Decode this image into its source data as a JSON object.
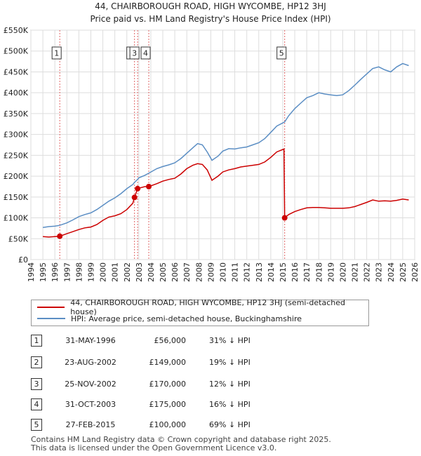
{
  "title_line1": "44, CHAIRBOROUGH ROAD, HIGH WYCOMBE, HP12 3HJ",
  "title_line2": "Price paid vs. HM Land Registry's House Price Index (HPI)",
  "colors": {
    "price_line": "#cc0000",
    "hpi_line": "#5b8ec4",
    "grid": "#dddddd",
    "sale_marker": "#cc0000",
    "vline": "#e06666"
  },
  "chart_data": {
    "type": "line",
    "title": "44, CHAIRBOROUGH ROAD, HIGH WYCOMBE, HP12 3HJ — Price paid vs. HM Land Registry's House Price Index (HPI)",
    "xlim": [
      1994,
      2026
    ],
    "ylim": [
      0,
      550000
    ],
    "x_ticks": [
      "1994",
      "1995",
      "1996",
      "1997",
      "1998",
      "1999",
      "2000",
      "2001",
      "2002",
      "2003",
      "2004",
      "2005",
      "2006",
      "2007",
      "2008",
      "2009",
      "2010",
      "2011",
      "2012",
      "2013",
      "2014",
      "2015",
      "2016",
      "2017",
      "2018",
      "2019",
      "2020",
      "2021",
      "2022",
      "2023",
      "2024",
      "2025",
      "2026"
    ],
    "y_ticks": [
      {
        "value": 0,
        "label": "£0"
      },
      {
        "value": 50000,
        "label": "£50K"
      },
      {
        "value": 100000,
        "label": "£100K"
      },
      {
        "value": 150000,
        "label": "£150K"
      },
      {
        "value": 200000,
        "label": "£200K"
      },
      {
        "value": 250000,
        "label": "£250K"
      },
      {
        "value": 300000,
        "label": "£300K"
      },
      {
        "value": 350000,
        "label": "£350K"
      },
      {
        "value": 400000,
        "label": "£400K"
      },
      {
        "value": 450000,
        "label": "£450K"
      },
      {
        "value": 500000,
        "label": "£500K"
      },
      {
        "value": 550000,
        "label": "£550K"
      }
    ],
    "series": [
      {
        "name": "44, CHAIRBOROUGH ROAD, HIGH WYCOMBE, HP12 3HJ (semi-detached house)",
        "points": [
          [
            1995.0,
            55000
          ],
          [
            1995.5,
            54000
          ],
          [
            1996.0,
            55000
          ],
          [
            1996.41,
            56000
          ],
          [
            1997.0,
            62000
          ],
          [
            1997.5,
            67000
          ],
          [
            1998.0,
            72000
          ],
          [
            1998.5,
            76000
          ],
          [
            1999.0,
            78000
          ],
          [
            1999.5,
            84000
          ],
          [
            2000.0,
            94000
          ],
          [
            2000.5,
            102000
          ],
          [
            2001.0,
            105000
          ],
          [
            2001.5,
            110000
          ],
          [
            2002.0,
            120000
          ],
          [
            2002.5,
            135000
          ],
          [
            2002.64,
            149000
          ],
          [
            2002.9,
            170000
          ],
          [
            2003.0,
            171000
          ],
          [
            2003.5,
            175000
          ],
          [
            2003.83,
            175000
          ],
          [
            2004.5,
            182000
          ],
          [
            2005.0,
            188000
          ],
          [
            2005.5,
            192000
          ],
          [
            2006.0,
            195000
          ],
          [
            2006.5,
            205000
          ],
          [
            2007.0,
            218000
          ],
          [
            2007.5,
            226000
          ],
          [
            2007.9,
            230000
          ],
          [
            2008.3,
            228000
          ],
          [
            2008.7,
            215000
          ],
          [
            2009.1,
            190000
          ],
          [
            2009.6,
            200000
          ],
          [
            2010.0,
            210000
          ],
          [
            2010.5,
            215000
          ],
          [
            2011.0,
            218000
          ],
          [
            2011.5,
            222000
          ],
          [
            2012.0,
            224000
          ],
          [
            2012.5,
            226000
          ],
          [
            2013.0,
            228000
          ],
          [
            2013.5,
            234000
          ],
          [
            2014.0,
            245000
          ],
          [
            2014.5,
            258000
          ],
          [
            2015.1,
            265000
          ],
          [
            2015.16,
            100000
          ],
          [
            2015.5,
            108000
          ],
          [
            2016.0,
            115000
          ],
          [
            2016.5,
            120000
          ],
          [
            2017.0,
            124000
          ],
          [
            2017.5,
            125000
          ],
          [
            2018.0,
            125000
          ],
          [
            2018.5,
            124000
          ],
          [
            2019.0,
            123000
          ],
          [
            2019.5,
            123000
          ],
          [
            2020.0,
            123000
          ],
          [
            2020.5,
            124000
          ],
          [
            2021.0,
            127000
          ],
          [
            2021.5,
            132000
          ],
          [
            2022.0,
            137000
          ],
          [
            2022.5,
            143000
          ],
          [
            2023.0,
            140000
          ],
          [
            2023.5,
            141000
          ],
          [
            2024.0,
            140000
          ],
          [
            2024.5,
            142000
          ],
          [
            2025.0,
            145000
          ],
          [
            2025.5,
            143000
          ]
        ]
      },
      {
        "name": "HPI: Average price, semi-detached house, Buckinghamshire",
        "points": [
          [
            1995.0,
            77000
          ],
          [
            1995.5,
            79000
          ],
          [
            1996.0,
            80000
          ],
          [
            1996.41,
            82000
          ],
          [
            1997.0,
            88000
          ],
          [
            1997.5,
            95000
          ],
          [
            1998.0,
            103000
          ],
          [
            1998.5,
            108000
          ],
          [
            1999.0,
            112000
          ],
          [
            1999.5,
            120000
          ],
          [
            2000.0,
            130000
          ],
          [
            2000.5,
            140000
          ],
          [
            2001.0,
            148000
          ],
          [
            2001.5,
            158000
          ],
          [
            2002.0,
            170000
          ],
          [
            2002.5,
            180000
          ],
          [
            2002.64,
            185000
          ],
          [
            2002.9,
            192000
          ],
          [
            2003.0,
            196000
          ],
          [
            2003.5,
            202000
          ],
          [
            2003.83,
            207000
          ],
          [
            2004.5,
            218000
          ],
          [
            2005.0,
            223000
          ],
          [
            2005.5,
            227000
          ],
          [
            2006.0,
            232000
          ],
          [
            2006.5,
            242000
          ],
          [
            2007.0,
            255000
          ],
          [
            2007.5,
            268000
          ],
          [
            2007.9,
            278000
          ],
          [
            2008.3,
            275000
          ],
          [
            2008.7,
            258000
          ],
          [
            2009.1,
            238000
          ],
          [
            2009.6,
            248000
          ],
          [
            2010.0,
            260000
          ],
          [
            2010.5,
            266000
          ],
          [
            2011.0,
            265000
          ],
          [
            2011.5,
            268000
          ],
          [
            2012.0,
            270000
          ],
          [
            2012.5,
            275000
          ],
          [
            2013.0,
            280000
          ],
          [
            2013.5,
            290000
          ],
          [
            2014.0,
            305000
          ],
          [
            2014.5,
            320000
          ],
          [
            2015.16,
            330000
          ],
          [
            2015.5,
            345000
          ],
          [
            2016.0,
            362000
          ],
          [
            2016.5,
            375000
          ],
          [
            2017.0,
            388000
          ],
          [
            2017.5,
            393000
          ],
          [
            2018.0,
            400000
          ],
          [
            2018.5,
            397000
          ],
          [
            2019.0,
            395000
          ],
          [
            2019.5,
            393000
          ],
          [
            2020.0,
            395000
          ],
          [
            2020.5,
            405000
          ],
          [
            2021.0,
            418000
          ],
          [
            2021.5,
            432000
          ],
          [
            2022.0,
            445000
          ],
          [
            2022.5,
            458000
          ],
          [
            2023.0,
            462000
          ],
          [
            2023.5,
            455000
          ],
          [
            2024.0,
            450000
          ],
          [
            2024.5,
            462000
          ],
          [
            2025.0,
            470000
          ],
          [
            2025.5,
            465000
          ]
        ]
      }
    ],
    "sales": [
      {
        "label": "1",
        "x": 1996.41,
        "y": 56000
      },
      {
        "label": "2",
        "x": 2002.64,
        "y": 149000
      },
      {
        "label": "3",
        "x": 2002.9,
        "y": 170000
      },
      {
        "label": "4",
        "x": 2003.83,
        "y": 175000
      },
      {
        "label": "5",
        "x": 2015.16,
        "y": 100000
      }
    ]
  },
  "legend": {
    "price_label": "44, CHAIRBOROUGH ROAD, HIGH WYCOMBE, HP12 3HJ (semi-detached house)",
    "hpi_label": "HPI: Average price, semi-detached house, Buckinghamshire"
  },
  "transactions": [
    {
      "num": "1",
      "date": "31-MAY-1996",
      "price": "£56,000",
      "hpi": "31% ↓ HPI"
    },
    {
      "num": "2",
      "date": "23-AUG-2002",
      "price": "£149,000",
      "hpi": "19% ↓ HPI"
    },
    {
      "num": "3",
      "date": "25-NOV-2002",
      "price": "£170,000",
      "hpi": "12% ↓ HPI"
    },
    {
      "num": "4",
      "date": "31-OCT-2003",
      "price": "£175,000",
      "hpi": "16% ↓ HPI"
    },
    {
      "num": "5",
      "date": "27-FEB-2015",
      "price": "£100,000",
      "hpi": "69% ↓ HPI"
    }
  ],
  "footer_line1": "Contains HM Land Registry data © Crown copyright and database right 2025.",
  "footer_line2": "This data is licensed under the Open Government Licence v3.0."
}
